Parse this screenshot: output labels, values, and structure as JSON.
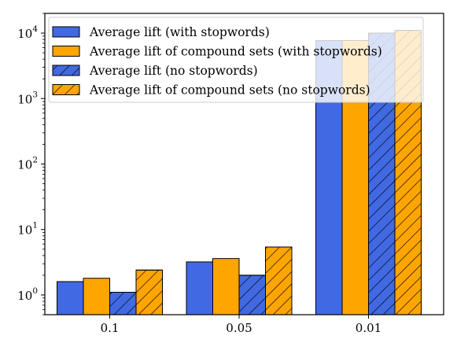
{
  "chart_data": {
    "type": "bar",
    "title": "",
    "xlabel": "",
    "ylabel": "",
    "yscale": "log",
    "ylim": [
      0.5,
      20000
    ],
    "categories": [
      "0.1",
      "0.05",
      "0.01"
    ],
    "y_ticks": [
      {
        "value": 1,
        "base": "10",
        "exp": "0"
      },
      {
        "value": 10,
        "base": "10",
        "exp": "1"
      },
      {
        "value": 100,
        "base": "10",
        "exp": "2"
      },
      {
        "value": 1000,
        "base": "10",
        "exp": "3"
      },
      {
        "value": 10000,
        "base": "10",
        "exp": "4"
      }
    ],
    "series": [
      {
        "name": "Average lift (with stopwords)",
        "color": "#4169e1",
        "hatch": false,
        "values": [
          1.6,
          3.2,
          7700
        ]
      },
      {
        "name": "Average lift of compound sets (with stopwords)",
        "color": "#ffa500",
        "hatch": false,
        "values": [
          1.8,
          3.6,
          7700
        ]
      },
      {
        "name": "Average lift (no stopwords)",
        "color": "#4169e1",
        "hatch": true,
        "values": [
          1.1,
          2.0,
          10000
        ]
      },
      {
        "name": "Average lift of compound sets (no stopwords)",
        "color": "#ffa500",
        "hatch": true,
        "values": [
          2.4,
          5.4,
          11000
        ]
      }
    ],
    "grid": false,
    "legend_position": "top-left"
  }
}
